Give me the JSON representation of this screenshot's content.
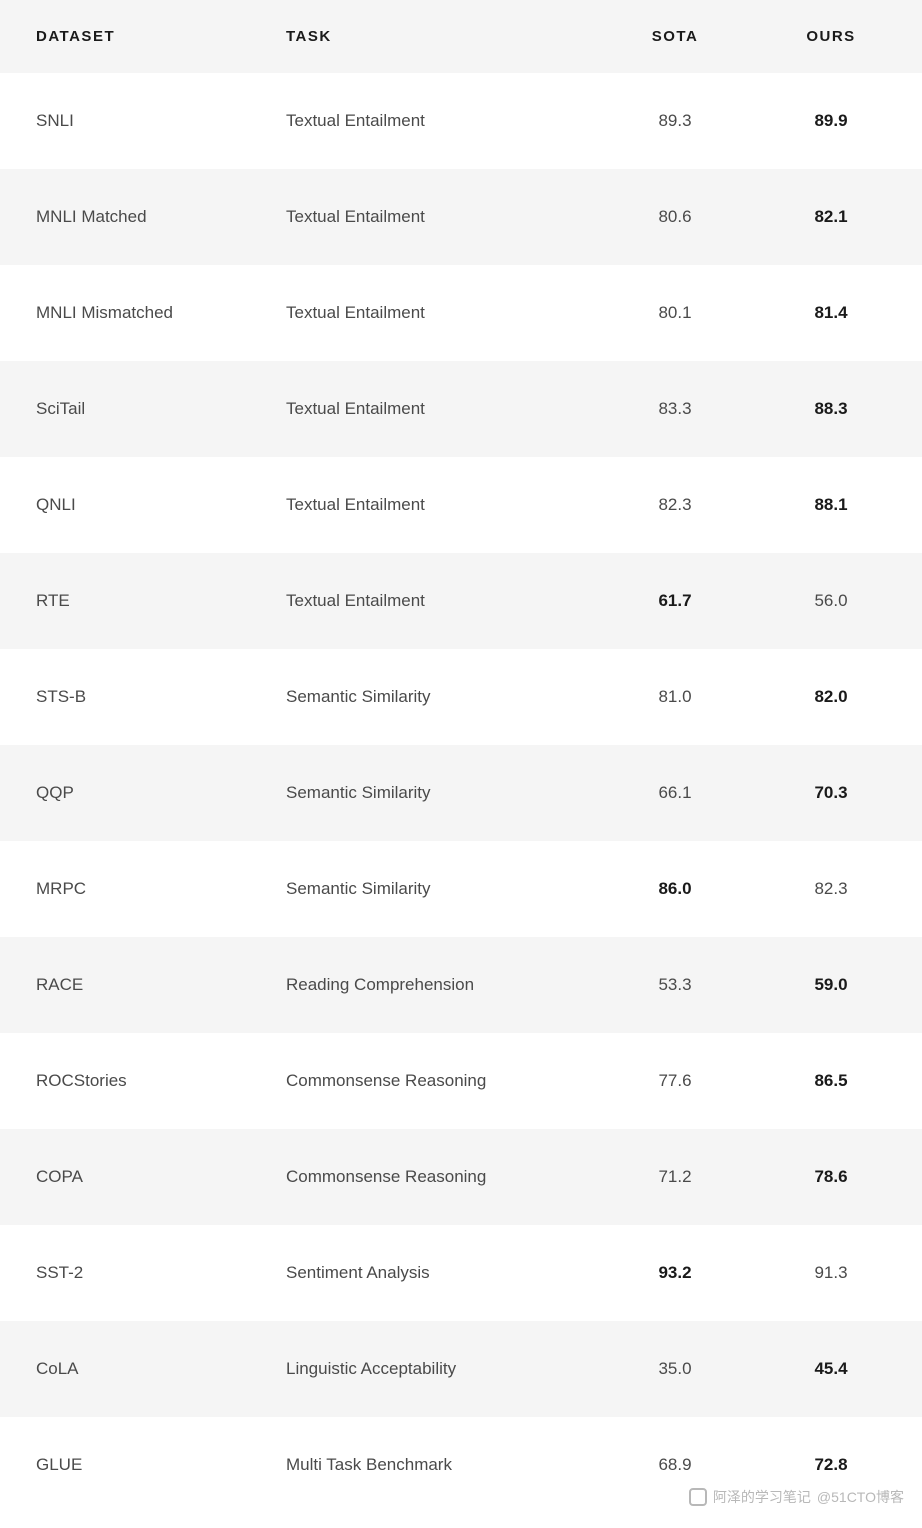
{
  "table": {
    "columns": [
      {
        "key": "dataset",
        "label": "DATASET"
      },
      {
        "key": "task",
        "label": "TASK"
      },
      {
        "key": "sota",
        "label": "SOTA"
      },
      {
        "key": "ours",
        "label": "OURS"
      }
    ],
    "header_background": "#f5f5f5",
    "row_background_odd": "#ffffff",
    "row_background_even": "#f5f5f5",
    "text_color": "#4a4a4a",
    "bold_color": "#1a1a1a",
    "font_size_header": 15,
    "font_size_body": 17,
    "rows": [
      {
        "dataset": "SNLI",
        "task": "Textual Entailment",
        "sota": "89.3",
        "ours": "89.9",
        "bold": "ours"
      },
      {
        "dataset": "MNLI Matched",
        "task": "Textual Entailment",
        "sota": "80.6",
        "ours": "82.1",
        "bold": "ours"
      },
      {
        "dataset": "MNLI Mismatched",
        "task": "Textual Entailment",
        "sota": "80.1",
        "ours": "81.4",
        "bold": "ours"
      },
      {
        "dataset": "SciTail",
        "task": "Textual Entailment",
        "sota": "83.3",
        "ours": "88.3",
        "bold": "ours"
      },
      {
        "dataset": "QNLI",
        "task": "Textual Entailment",
        "sota": "82.3",
        "ours": "88.1",
        "bold": "ours"
      },
      {
        "dataset": "RTE",
        "task": "Textual Entailment",
        "sota": "61.7",
        "ours": "56.0",
        "bold": "sota"
      },
      {
        "dataset": "STS-B",
        "task": "Semantic Similarity",
        "sota": "81.0",
        "ours": "82.0",
        "bold": "ours"
      },
      {
        "dataset": "QQP",
        "task": "Semantic Similarity",
        "sota": "66.1",
        "ours": "70.3",
        "bold": "ours"
      },
      {
        "dataset": "MRPC",
        "task": "Semantic Similarity",
        "sota": "86.0",
        "ours": "82.3",
        "bold": "sota"
      },
      {
        "dataset": "RACE",
        "task": "Reading Comprehension",
        "sota": "53.3",
        "ours": "59.0",
        "bold": "ours"
      },
      {
        "dataset": "ROCStories",
        "task": "Commonsense Reasoning",
        "sota": "77.6",
        "ours": "86.5",
        "bold": "ours"
      },
      {
        "dataset": "COPA",
        "task": "Commonsense Reasoning",
        "sota": "71.2",
        "ours": "78.6",
        "bold": "ours"
      },
      {
        "dataset": "SST-2",
        "task": "Sentiment Analysis",
        "sota": "93.2",
        "ours": "91.3",
        "bold": "sota"
      },
      {
        "dataset": "CoLA",
        "task": "Linguistic Acceptability",
        "sota": "35.0",
        "ours": "45.4",
        "bold": "ours"
      },
      {
        "dataset": "GLUE",
        "task": "Multi Task Benchmark",
        "sota": "68.9",
        "ours": "72.8",
        "bold": "ours"
      }
    ]
  },
  "watermark": {
    "left_text": "阿泽的学习笔记",
    "right_text": "@51CTO博客",
    "color": "#b8b8b8"
  }
}
